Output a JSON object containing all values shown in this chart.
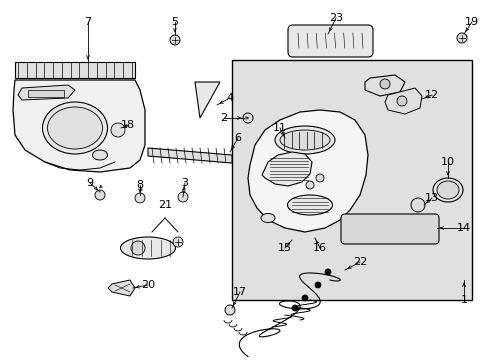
{
  "bg_color": "#ffffff",
  "fig_width": 4.89,
  "fig_height": 3.6,
  "dpi": 100,
  "line_color": "#000000",
  "fill_color": "#f0f0f0",
  "panel_fill": "#e8e8e8"
}
